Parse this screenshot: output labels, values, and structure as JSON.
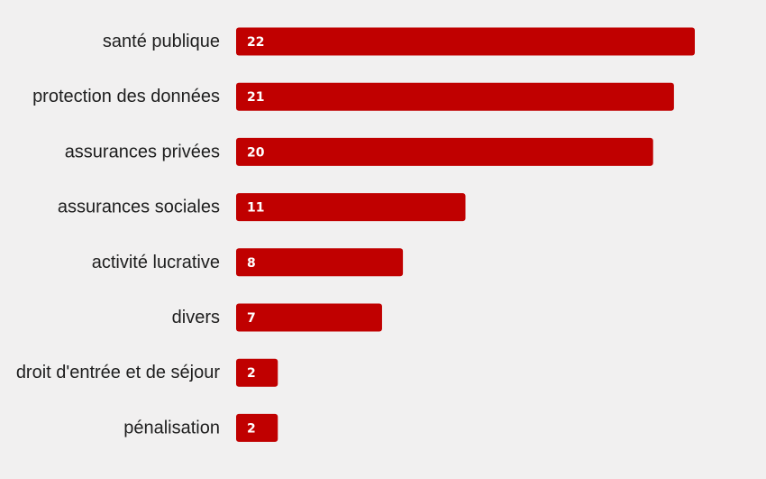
{
  "chart_data": {
    "type": "bar",
    "orientation": "horizontal",
    "title": "",
    "xlabel": "",
    "ylabel": "",
    "categories": [
      "santé publique",
      "protection des données",
      "assurances privées",
      "assurances sociales",
      "activité lucrative",
      "divers",
      "droit d'entrée et de séjour",
      "pénalisation"
    ],
    "values": [
      22,
      21,
      20,
      11,
      8,
      7,
      2,
      2
    ],
    "xlim": [
      0,
      22
    ],
    "grid": false,
    "legend": "none",
    "bar_color": "#c00000",
    "label_color": "#ffffff",
    "background": "#f1f0f0"
  }
}
